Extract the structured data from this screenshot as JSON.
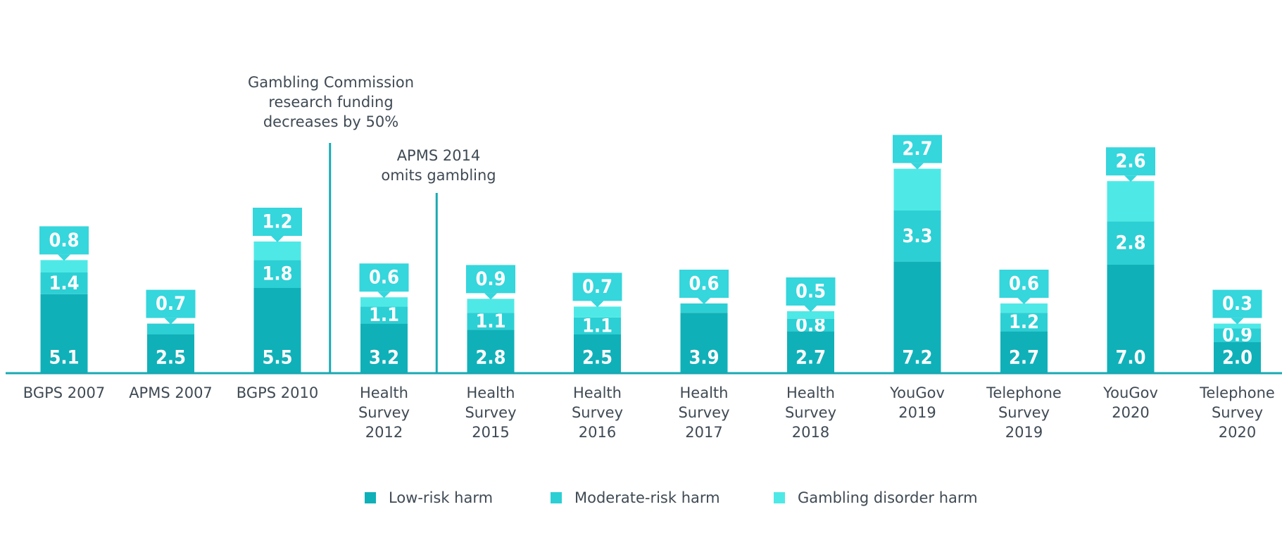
{
  "chart_data": {
    "type": "bar",
    "stacked": true,
    "categories": [
      [
        "BGPS 2007"
      ],
      [
        "APMS 2007"
      ],
      [
        "BGPS 2010"
      ],
      [
        "Health",
        "Survey",
        "2012"
      ],
      [
        "Health",
        "Survey",
        "2015"
      ],
      [
        "Health",
        "Survey",
        "2016"
      ],
      [
        "Health",
        "Survey",
        "2017"
      ],
      [
        "Health",
        "Survey",
        "2018"
      ],
      [
        "YouGov",
        "2019"
      ],
      [
        "Telephone",
        "Survey",
        "2019"
      ],
      [
        "YouGov",
        "2020"
      ],
      [
        "Telephone",
        "Survey",
        "2020"
      ]
    ],
    "series": [
      {
        "name": "Low-risk harm",
        "color": "#10b0b8",
        "values": [
          5.1,
          2.5,
          5.5,
          3.2,
          2.8,
          2.5,
          3.9,
          2.7,
          7.2,
          2.7,
          7.0,
          2.0
        ]
      },
      {
        "name": "Moderate-risk harm",
        "color": "#2ccfd4",
        "values": [
          1.4,
          0.7,
          1.8,
          1.1,
          1.1,
          1.1,
          0.6,
          0.8,
          3.3,
          1.2,
          2.8,
          0.9
        ]
      },
      {
        "name": "Gambling disorder harm",
        "color": "#4ee9e6",
        "values": [
          0.8,
          null,
          1.2,
          0.6,
          0.9,
          0.7,
          null,
          0.5,
          2.7,
          0.6,
          2.6,
          0.3
        ]
      }
    ],
    "ylim": [
      0,
      13.5
    ],
    "grid": false,
    "legend_position": "bottom",
    "annotations": [
      {
        "after_category": 2,
        "lines": [
          "Gambling Commission",
          "research funding",
          "decreases by 50%"
        ]
      },
      {
        "after_category": 3,
        "lines": [
          "APMS 2014",
          "omits gambling"
        ]
      }
    ],
    "callout_color": "#35d6dc",
    "line_color": "#1aa9b3"
  }
}
